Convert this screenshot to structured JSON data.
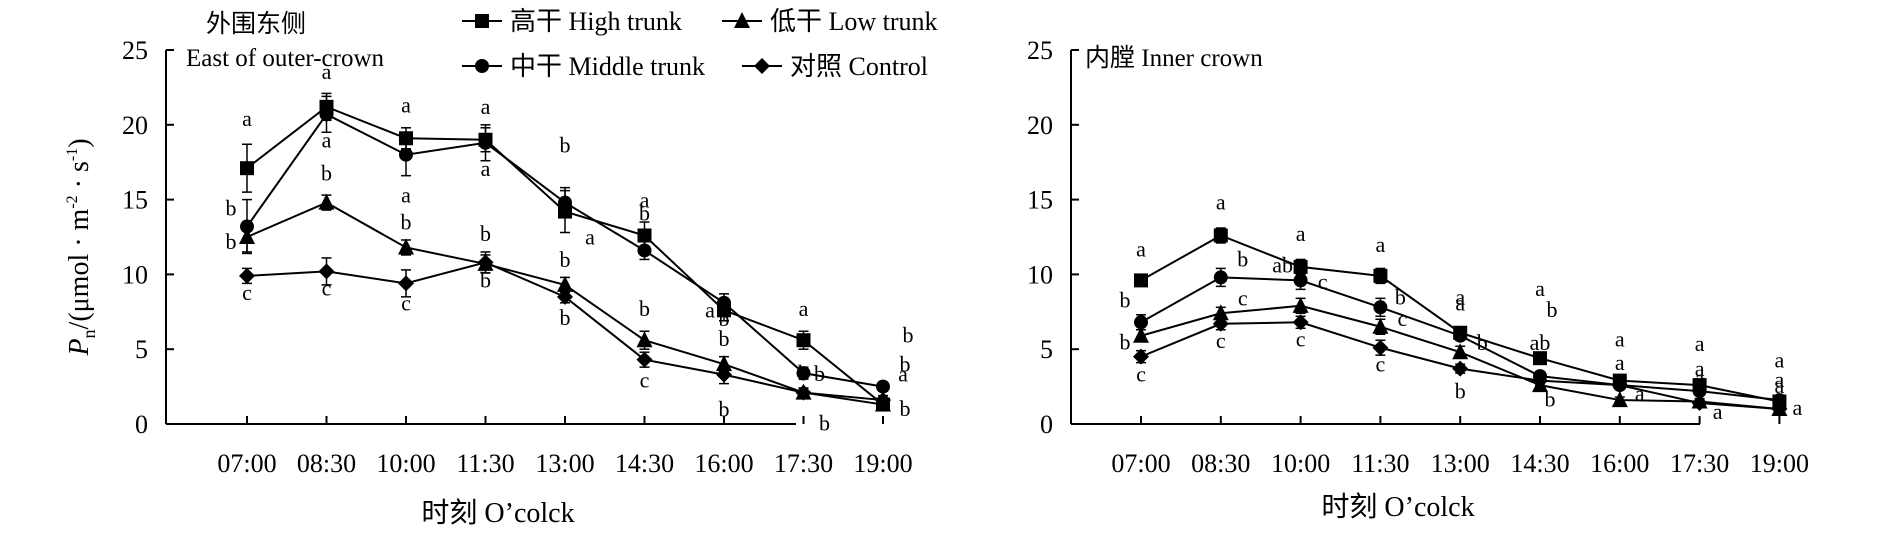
{
  "legend": [
    {
      "series": "High trunk",
      "label": "高干  High trunk",
      "marker": "square"
    },
    {
      "series": "Low trunk",
      "label": "低干  Low trunk",
      "marker": "triangle"
    },
    {
      "series": "Middle trunk",
      "label": "中干  Middle trunk",
      "marker": "circle"
    },
    {
      "series": "Control",
      "label": "对照  Control",
      "marker": "diamond"
    }
  ],
  "y_axis_label": {
    "symbol": "P",
    "subscript": "n",
    "rest": "/(μmol · m",
    "exp1": "-2",
    "mid": " · s",
    "exp2": "-1",
    "close": ")"
  },
  "x_axis_label": "时刻  O’colck",
  "colors": {
    "ink": "#000000",
    "background": "#ffffff"
  },
  "chart_data": [
    {
      "type": "line",
      "title": "外围东侧",
      "subtitle": "East of outer-crown",
      "categories": [
        "07:00",
        "08:30",
        "10:00",
        "11:30",
        "13:00",
        "14:30",
        "16:00",
        "17:30",
        "19:00"
      ],
      "ylim": [
        0,
        25
      ],
      "yticks": [
        0,
        5,
        10,
        15,
        20,
        25
      ],
      "grid": false,
      "error_bars": true,
      "series": [
        {
          "name": "High trunk",
          "marker": "square",
          "values": [
            17.1,
            21.2,
            19.1,
            19.0,
            14.2,
            12.6,
            7.6,
            5.6,
            1.3
          ],
          "errors": [
            1.6,
            0.9,
            0.7,
            0.8,
            1.4,
            0.9,
            0.7,
            0.6,
            0.4
          ],
          "labels": [
            {
              "t": "a",
              "dx": 0,
              "dy": -42
            },
            {
              "t": "a",
              "dx": 0,
              "dy": -28
            },
            {
              "t": "a",
              "dx": 0,
              "dy": -26
            },
            {
              "t": "a",
              "dx": 0,
              "dy": -26
            },
            {
              "t": "a",
              "dx": 25,
              "dy": 33
            },
            {
              "t": "a",
              "dx": 0,
              "dy": -28
            },
            {
              "t": "a",
              "dx": -14,
              "dy": 7
            },
            {
              "t": "a",
              "dx": 0,
              "dy": -24
            },
            {
              "t": "b",
              "dx": 25,
              "dy": -62
            }
          ]
        },
        {
          "name": "Low trunk",
          "marker": "triangle",
          "values": [
            12.5,
            14.8,
            11.8,
            10.7,
            9.3,
            5.6,
            4.0,
            2.1,
            1.3
          ],
          "errors": [
            1.0,
            0.5,
            0.5,
            0.6,
            0.5,
            0.6,
            0.5,
            0.3,
            0.3
          ],
          "labels": [
            {
              "t": "b",
              "dx": -16,
              "dy": 12
            },
            {
              "t": "b",
              "dx": 0,
              "dy": -22
            },
            {
              "t": "b",
              "dx": 0,
              "dy": -18
            },
            {
              "t": "b",
              "dx": 0,
              "dy": -23
            },
            {
              "t": "b",
              "dx": 0,
              "dy": -18
            },
            {
              "t": "b",
              "dx": 0,
              "dy": -24
            },
            {
              "t": "b",
              "dx": 0,
              "dy": -18
            },
            {
              "t": "b",
              "dx": 21,
              "dy": 38
            },
            {
              "t": "b",
              "dx": 22,
              "dy": -33
            }
          ]
        },
        {
          "name": "Middle trunk",
          "marker": "circle",
          "values": [
            13.2,
            20.7,
            18.0,
            18.8,
            14.8,
            11.6,
            8.1,
            3.4,
            2.5
          ],
          "errors": [
            1.8,
            1.2,
            1.4,
            1.2,
            1.0,
            0.6,
            0.6,
            0.4,
            0.3
          ],
          "labels": [
            {
              "t": "b",
              "dx": -16,
              "dy": -11
            },
            {
              "t": "a",
              "dx": 0,
              "dy": 33
            },
            {
              "t": "a",
              "dx": 0,
              "dy": 48
            },
            {
              "t": "a",
              "dx": 0,
              "dy": 33
            },
            {
              "t": "b",
              "dx": 0,
              "dy": -50
            },
            {
              "t": "b",
              "dx": 0,
              "dy": -30
            },
            {
              "t": "b",
              "dx": 0,
              "dy": 23
            },
            {
              "t": "b",
              "dx": 16,
              "dy": 8
            },
            {
              "t": "a",
              "dx": 20,
              "dy": -5
            }
          ]
        },
        {
          "name": "Control",
          "marker": "diamond",
          "values": [
            9.9,
            10.2,
            9.4,
            10.8,
            8.5,
            4.3,
            3.3,
            2.1,
            1.6
          ],
          "errors": [
            0.5,
            0.9,
            0.9,
            0.7,
            0.4,
            0.5,
            0.6,
            0.3,
            0.3
          ],
          "labels": [
            {
              "t": "c",
              "dx": 0,
              "dy": 24
            },
            {
              "t": "c",
              "dx": 0,
              "dy": 24
            },
            {
              "t": "c",
              "dx": 0,
              "dy": 27
            },
            {
              "t": "b",
              "dx": 0,
              "dy": 25
            },
            {
              "t": "b",
              "dx": 0,
              "dy": 28
            },
            {
              "t": "c",
              "dx": 0,
              "dy": 28
            },
            {
              "t": "b",
              "dx": 0,
              "dy": 42
            },
            {
              "t": "b",
              "dx": 0,
              "dy": -12
            },
            {
              "t": "b",
              "dx": 22,
              "dy": 16
            }
          ]
        }
      ]
    },
    {
      "type": "line",
      "title": "内膛 Inner crown",
      "subtitle": "",
      "categories": [
        "07:00",
        "08:30",
        "10:00",
        "11:30",
        "13:00",
        "14:30",
        "16:00",
        "17:30",
        "19:00"
      ],
      "ylim": [
        0,
        25
      ],
      "yticks": [
        0,
        5,
        10,
        15,
        20,
        25
      ],
      "grid": false,
      "error_bars": true,
      "series": [
        {
          "name": "High trunk",
          "marker": "square",
          "values": [
            9.6,
            12.6,
            10.5,
            9.9,
            6.1,
            4.4,
            2.9,
            2.6,
            1.5
          ],
          "errors": [
            0.4,
            0.5,
            0.5,
            0.5,
            0.3,
            0.3,
            0.3,
            0.2,
            0.2
          ],
          "labels": [
            {
              "t": "a",
              "dx": 0,
              "dy": -24
            },
            {
              "t": "a",
              "dx": 0,
              "dy": -26
            },
            {
              "t": "a",
              "dx": 0,
              "dy": -26
            },
            {
              "t": "a",
              "dx": 0,
              "dy": -24
            },
            {
              "t": "a",
              "dx": 0,
              "dy": -28
            },
            {
              "t": "a",
              "dx": 0,
              "dy": -62
            },
            {
              "t": "a",
              "dx": 0,
              "dy": -34
            },
            {
              "t": "a",
              "dx": 0,
              "dy": -34
            },
            {
              "t": "a",
              "dx": 0,
              "dy": -34
            }
          ]
        },
        {
          "name": "Low trunk",
          "marker": "triangle",
          "values": [
            5.9,
            7.4,
            7.9,
            6.5,
            4.8,
            2.6,
            1.6,
            1.5,
            1.0
          ],
          "errors": [
            0.4,
            0.4,
            0.5,
            0.5,
            0.4,
            0.3,
            0.2,
            0.2,
            0.2
          ],
          "labels": [
            {
              "t": "b",
              "dx": -16,
              "dy": 14
            },
            {
              "t": "c",
              "dx": 22,
              "dy": -8
            },
            {
              "t": "c",
              "dx": 22,
              "dy": -17
            },
            {
              "t": "c",
              "dx": 22,
              "dy": -1
            },
            {
              "t": "b",
              "dx": 22,
              "dy": -2
            },
            {
              "t": "b",
              "dx": 12,
              "dy": -68
            },
            {
              "t": "a",
              "dx": 0,
              "dy": -16
            },
            {
              "t": "a",
              "dx": 0,
              "dy": -16
            },
            {
              "t": "a",
              "dx": 0,
              "dy": -16
            }
          ]
        },
        {
          "name": "Middle trunk",
          "marker": "circle",
          "values": [
            6.8,
            9.8,
            9.6,
            7.8,
            5.9,
            3.2,
            2.6,
            2.2,
            1.6
          ],
          "errors": [
            0.5,
            0.6,
            0.6,
            0.6,
            0.3,
            0.3,
            0.2,
            0.2,
            0.2
          ],
          "labels": [
            {
              "t": "b",
              "dx": -16,
              "dy": -15
            },
            {
              "t": "b",
              "dx": 22,
              "dy": -11
            },
            {
              "t": "ab",
              "dx": -18,
              "dy": -8
            },
            {
              "t": "b",
              "dx": 20,
              "dy": -3
            },
            {
              "t": "a",
              "dx": 0,
              "dy": -25
            },
            {
              "t": "ab",
              "dx": 0,
              "dy": -26
            },
            {
              "t": "a",
              "dx": 0,
              "dy": -15
            },
            {
              "t": "a",
              "dx": 0,
              "dy": -15
            },
            {
              "t": "a",
              "dx": 0,
              "dy": -13
            }
          ]
        },
        {
          "name": "Control",
          "marker": "diamond",
          "values": [
            4.5,
            6.7,
            6.8,
            5.1,
            3.7,
            2.9,
            2.6,
            1.4,
            1.0
          ],
          "errors": [
            0.4,
            0.4,
            0.4,
            0.5,
            0.3,
            0.3,
            0.2,
            0.2,
            0.2
          ],
          "labels": [
            {
              "t": "c",
              "dx": 0,
              "dy": 25
            },
            {
              "t": "c",
              "dx": 0,
              "dy": 24
            },
            {
              "t": "c",
              "dx": 0,
              "dy": 24
            },
            {
              "t": "c",
              "dx": 0,
              "dy": 24
            },
            {
              "t": "b",
              "dx": 0,
              "dy": 30
            },
            {
              "t": "b",
              "dx": 10,
              "dy": 26
            },
            {
              "t": "a",
              "dx": 20,
              "dy": 16
            },
            {
              "t": "a",
              "dx": 18,
              "dy": 16
            },
            {
              "t": "a",
              "dx": 18,
              "dy": 6
            }
          ]
        }
      ]
    }
  ]
}
